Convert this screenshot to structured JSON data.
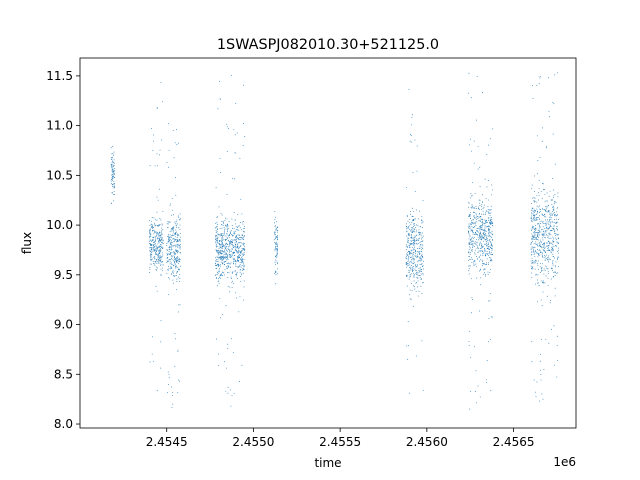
{
  "chart_data": {
    "type": "scatter",
    "title": "1SWASPJ082010.30+521125.0",
    "xlabel": "time",
    "ylabel": "flux",
    "x_offset_label": "1e6",
    "xlim": [
      2.454,
      2.45686
    ],
    "ylim": [
      7.96,
      11.68
    ],
    "x_ticks": [
      2.4545,
      2.455,
      2.4555,
      2.456,
      2.4565
    ],
    "x_tick_labels": [
      "2.4545",
      "2.4550",
      "2.4555",
      "2.4560",
      "2.4565"
    ],
    "y_ticks": [
      8.0,
      8.5,
      9.0,
      9.5,
      10.0,
      10.5,
      11.0,
      11.5
    ],
    "y_tick_labels": [
      "8.0",
      "8.5",
      "9.0",
      "9.5",
      "10.0",
      "10.5",
      "11.0",
      "11.5"
    ],
    "grid": false,
    "marker_color": "#1f77b4",
    "seasons": [
      {
        "x_start": 2.45418,
        "x_end": 2.4542,
        "median": 10.5,
        "core_low": 10.2,
        "core_high": 10.95,
        "flux_min": 10.15,
        "flux_max": 10.95
      },
      {
        "x_start": 2.4544,
        "x_end": 2.45448,
        "median": 9.8,
        "core_low": 9.45,
        "core_high": 10.2,
        "flux_min": 8.25,
        "flux_max": 11.45
      },
      {
        "x_start": 2.4545,
        "x_end": 2.45458,
        "median": 9.75,
        "core_low": 9.2,
        "core_high": 10.2,
        "flux_min": 8.15,
        "flux_max": 11.05
      },
      {
        "x_start": 2.45478,
        "x_end": 2.45495,
        "median": 9.75,
        "core_low": 9.35,
        "core_high": 10.25,
        "flux_min": 8.15,
        "flux_max": 11.55
      },
      {
        "x_start": 2.45512,
        "x_end": 2.45514,
        "median": 9.8,
        "core_low": 9.35,
        "core_high": 10.25,
        "flux_min": 9.25,
        "flux_max": 10.3
      },
      {
        "x_start": 2.45588,
        "x_end": 2.45598,
        "median": 9.75,
        "core_low": 9.2,
        "core_high": 10.35,
        "flux_min": 8.2,
        "flux_max": 11.55
      },
      {
        "x_start": 2.45624,
        "x_end": 2.45638,
        "median": 9.9,
        "core_low": 9.3,
        "core_high": 10.5,
        "flux_min": 8.15,
        "flux_max": 11.55
      },
      {
        "x_start": 2.4566,
        "x_end": 2.45676,
        "median": 9.9,
        "core_low": 9.2,
        "core_high": 10.6,
        "flux_min": 8.15,
        "flux_max": 11.55
      }
    ]
  }
}
